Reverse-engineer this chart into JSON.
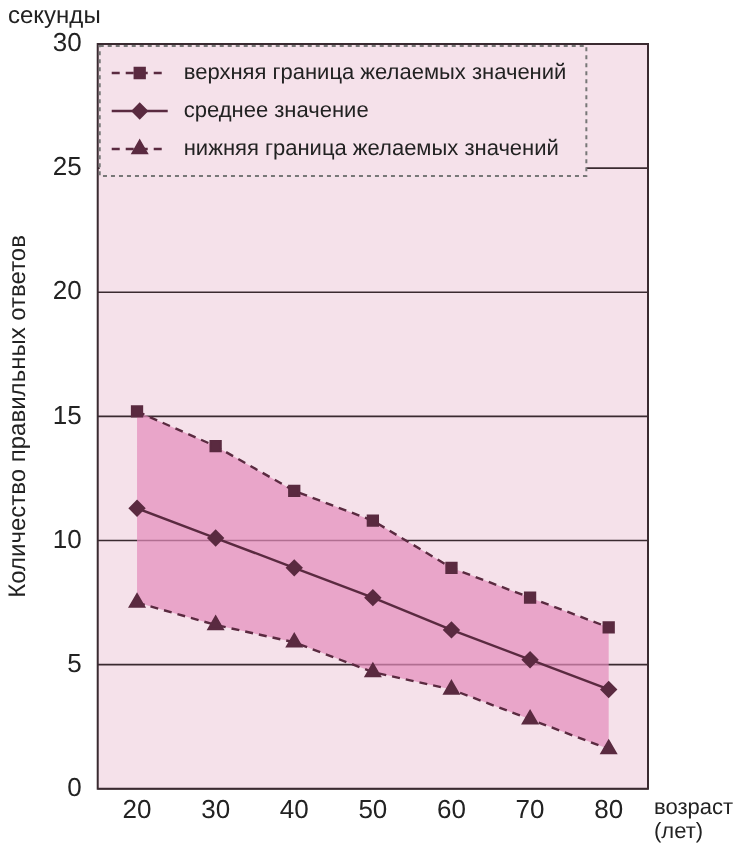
{
  "chart_data": {
    "type": "line",
    "ylabel": "Количество правильных ответов",
    "xlabel": "возраст (лет)",
    "annotations": [
      "секунды"
    ],
    "x": [
      20,
      30,
      40,
      50,
      60,
      70,
      80
    ],
    "xlim": [
      15,
      85
    ],
    "xticks": [
      20,
      30,
      40,
      50,
      60,
      70,
      80
    ],
    "ylim": [
      0,
      30
    ],
    "yticks": [
      0,
      5,
      10,
      15,
      20,
      25,
      30
    ],
    "grid": "y",
    "legend": "top left",
    "series": [
      {
        "name": "верхняя граница желаемых значений",
        "color": "#5a2a40",
        "marker": "square",
        "line_style": "dashed",
        "values": [
          15.2,
          13.8,
          12.0,
          10.8,
          8.9,
          7.7,
          6.5
        ]
      },
      {
        "name": "среднее значение",
        "color": "#5a2a40",
        "marker": "diamond",
        "line_style": "solid",
        "values": [
          11.3,
          10.1,
          8.9,
          7.7,
          6.4,
          5.2,
          4.0
        ],
        "lower": [
          7.5,
          6.6,
          5.9,
          4.7,
          4.0,
          2.8,
          1.6
        ],
        "upper": [
          15.2,
          13.8,
          12.0,
          10.8,
          8.9,
          7.7,
          6.5
        ]
      },
      {
        "name": "нижняя граница желаемых значений",
        "color": "#5a2a40",
        "marker": "triangle",
        "line_style": "dashed",
        "values": [
          7.5,
          6.6,
          5.9,
          4.7,
          4.0,
          2.8,
          1.6
        ]
      }
    ]
  }
}
